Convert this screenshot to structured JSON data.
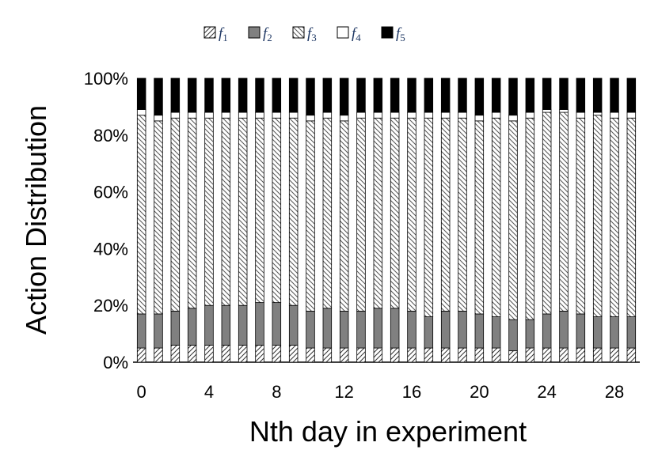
{
  "chart_data": {
    "type": "bar",
    "stacked": true,
    "normalized": true,
    "xlabel": "Nth day in experiment",
    "ylabel": "Action Distribution",
    "ylim": [
      0,
      100
    ],
    "y_ticks": [
      "0%",
      "20%",
      "40%",
      "60%",
      "80%",
      "100%"
    ],
    "x_ticks": [
      "0",
      "4",
      "8",
      "12",
      "16",
      "20",
      "24",
      "28"
    ],
    "legend_position": "top-center",
    "categories": [
      "0",
      "1",
      "2",
      "3",
      "4",
      "5",
      "6",
      "7",
      "8",
      "9",
      "10",
      "11",
      "12",
      "13",
      "14",
      "15",
      "16",
      "17",
      "18",
      "19",
      "20",
      "21",
      "22",
      "23",
      "24",
      "25",
      "26",
      "27",
      "28",
      "29"
    ],
    "series": [
      {
        "name": "f",
        "sub": "1",
        "pattern": "hatch-forward",
        "values": [
          5,
          5,
          6,
          6,
          6,
          6,
          6,
          6,
          6,
          6,
          5,
          5,
          5,
          5,
          5,
          5,
          5,
          5,
          5,
          5,
          5,
          5,
          4,
          5,
          5,
          5,
          5,
          5,
          5,
          5
        ]
      },
      {
        "name": "f",
        "sub": "2",
        "pattern": "solid-gray",
        "color": "#808080",
        "values": [
          12,
          12,
          12,
          13,
          14,
          14,
          14,
          15,
          15,
          14,
          13,
          14,
          13,
          13,
          14,
          14,
          13,
          11,
          13,
          13,
          12,
          11,
          11,
          10,
          12,
          13,
          12,
          11,
          11,
          11
        ]
      },
      {
        "name": "f",
        "sub": "3",
        "pattern": "hatch-back",
        "values": [
          70,
          68,
          68,
          67,
          66,
          66,
          66,
          65,
          65,
          66,
          67,
          67,
          67,
          68,
          67,
          67,
          68,
          70,
          68,
          68,
          68,
          70,
          70,
          71,
          71,
          70,
          69,
          71,
          70,
          70
        ]
      },
      {
        "name": "f",
        "sub": "4",
        "pattern": "white",
        "values": [
          2,
          2,
          2,
          2,
          2,
          2,
          2,
          2,
          2,
          2,
          2,
          2,
          2,
          2,
          2,
          2,
          2,
          2,
          2,
          2,
          2,
          2,
          2,
          2,
          1,
          1,
          2,
          1,
          2,
          2
        ]
      },
      {
        "name": "f",
        "sub": "5",
        "pattern": "solid-black",
        "color": "#000000",
        "values": [
          11,
          13,
          12,
          12,
          12,
          12,
          12,
          12,
          12,
          12,
          13,
          12,
          13,
          12,
          12,
          12,
          12,
          12,
          12,
          12,
          13,
          12,
          13,
          12,
          11,
          11,
          12,
          12,
          12,
          12
        ]
      }
    ]
  }
}
